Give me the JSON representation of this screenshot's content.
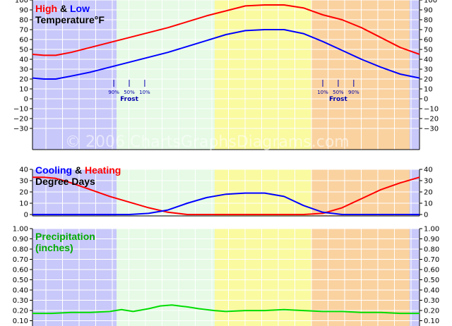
{
  "watermark": "© 2006 ChartsGraphsDiagrams.com",
  "colors": {
    "winter": "#c8c8fa",
    "spring": "#e6fae6",
    "summer": "#fafaa0",
    "autumn": "#fad2a0",
    "high": "#ff0000",
    "low": "#0000ff",
    "cooling": "#0000ff",
    "heating": "#ff0000",
    "precip": "#00dd00",
    "frost": "#0000aa"
  },
  "chart_data": [
    {
      "type": "line",
      "title_parts": [
        {
          "text": "High",
          "color": "#ff0000"
        },
        {
          "text": " & ",
          "color": "#000000"
        },
        {
          "text": "Low",
          "color": "#0000ff"
        }
      ],
      "title_line2": "Temperature°F",
      "ylim": [
        -30,
        110
      ],
      "yticks": [
        "110",
        "100",
        "90",
        "80",
        "70",
        "60",
        "50",
        "40",
        "30",
        "20",
        "10",
        "0",
        "−10",
        "−20",
        "−30"
      ],
      "grid": true,
      "series": [
        {
          "key": "high",
          "x": [
            0,
            0.03,
            0.06,
            0.1,
            0.15,
            0.2,
            0.25,
            0.3,
            0.35,
            0.4,
            0.45,
            0.5,
            0.55,
            0.6,
            0.65,
            0.7,
            0.75,
            0.8,
            0.85,
            0.9,
            0.95,
            1
          ],
          "values": [
            45,
            44,
            44,
            47,
            52,
            57,
            62,
            67,
            72,
            78,
            84,
            89,
            94,
            95,
            95,
            92,
            85,
            80,
            72,
            62,
            52,
            45
          ]
        },
        {
          "key": "low",
          "x": [
            0,
            0.03,
            0.06,
            0.1,
            0.15,
            0.2,
            0.25,
            0.3,
            0.35,
            0.4,
            0.45,
            0.5,
            0.55,
            0.6,
            0.65,
            0.7,
            0.75,
            0.8,
            0.85,
            0.9,
            0.95,
            1
          ],
          "values": [
            21,
            20,
            20,
            23,
            27,
            32,
            37,
            42,
            47,
            53,
            59,
            65,
            69,
            70,
            70,
            66,
            58,
            49,
            40,
            32,
            25,
            21
          ]
        }
      ],
      "annotations": {
        "spring_frost": {
          "labels": [
            "90%",
            "50%",
            "10%"
          ],
          "x": [
            0.21,
            0.25,
            0.29
          ],
          "caption": "Frost"
        },
        "fall_frost": {
          "labels": [
            "10%",
            "50%",
            "90%"
          ],
          "x": [
            0.75,
            0.79,
            0.83
          ],
          "caption": "Frost"
        }
      }
    },
    {
      "type": "line",
      "title_parts": [
        {
          "text": "Cooling",
          "color": "#0000ff"
        },
        {
          "text": " & ",
          "color": "#000000"
        },
        {
          "text": "Heating",
          "color": "#ff0000"
        }
      ],
      "title_line2": "Degree Days",
      "ylim": [
        0,
        40
      ],
      "yticks": [
        "40",
        "30",
        "20",
        "10",
        "0"
      ],
      "grid": true,
      "series": [
        {
          "key": "heating",
          "x": [
            0,
            0.03,
            0.06,
            0.1,
            0.15,
            0.2,
            0.25,
            0.3,
            0.35,
            0.4,
            0.45,
            0.5,
            0.55,
            0.6,
            0.65,
            0.7,
            0.75,
            0.8,
            0.85,
            0.9,
            0.95,
            1
          ],
          "values": [
            33,
            33,
            32,
            28,
            22,
            16,
            11,
            6,
            2,
            0,
            0,
            0,
            0,
            0,
            0,
            0,
            1,
            6,
            14,
            22,
            28,
            33
          ]
        },
        {
          "key": "cooling",
          "x": [
            0,
            0.03,
            0.06,
            0.1,
            0.15,
            0.2,
            0.25,
            0.3,
            0.35,
            0.4,
            0.45,
            0.5,
            0.55,
            0.6,
            0.65,
            0.7,
            0.75,
            0.8,
            0.85,
            0.9,
            0.95,
            1
          ],
          "values": [
            0,
            0,
            0,
            0,
            0,
            0,
            0,
            1,
            4,
            10,
            15,
            18,
            19,
            19,
            16,
            8,
            2,
            0,
            0,
            0,
            0,
            0
          ]
        }
      ]
    },
    {
      "type": "line",
      "title_parts": [
        {
          "text": "Precipitation",
          "color": "#00aa00"
        }
      ],
      "title_line2": "(inches)",
      "ylim": [
        0,
        1.0
      ],
      "yticks": [
        "1.00",
        "0.90",
        "0.80",
        "0.70",
        "0.60",
        "0.50",
        "0.40",
        "0.30",
        "0.20",
        "0.10"
      ],
      "grid": true,
      "series": [
        {
          "key": "precip",
          "x": [
            0,
            0.05,
            0.1,
            0.15,
            0.2,
            0.23,
            0.26,
            0.3,
            0.33,
            0.36,
            0.4,
            0.43,
            0.47,
            0.5,
            0.55,
            0.6,
            0.65,
            0.7,
            0.75,
            0.8,
            0.85,
            0.9,
            0.95,
            1
          ],
          "values": [
            0.08,
            0.08,
            0.09,
            0.09,
            0.1,
            0.12,
            0.1,
            0.13,
            0.16,
            0.17,
            0.15,
            0.13,
            0.11,
            0.1,
            0.11,
            0.11,
            0.12,
            0.11,
            0.1,
            0.1,
            0.09,
            0.09,
            0.08,
            0.08
          ]
        }
      ]
    }
  ]
}
